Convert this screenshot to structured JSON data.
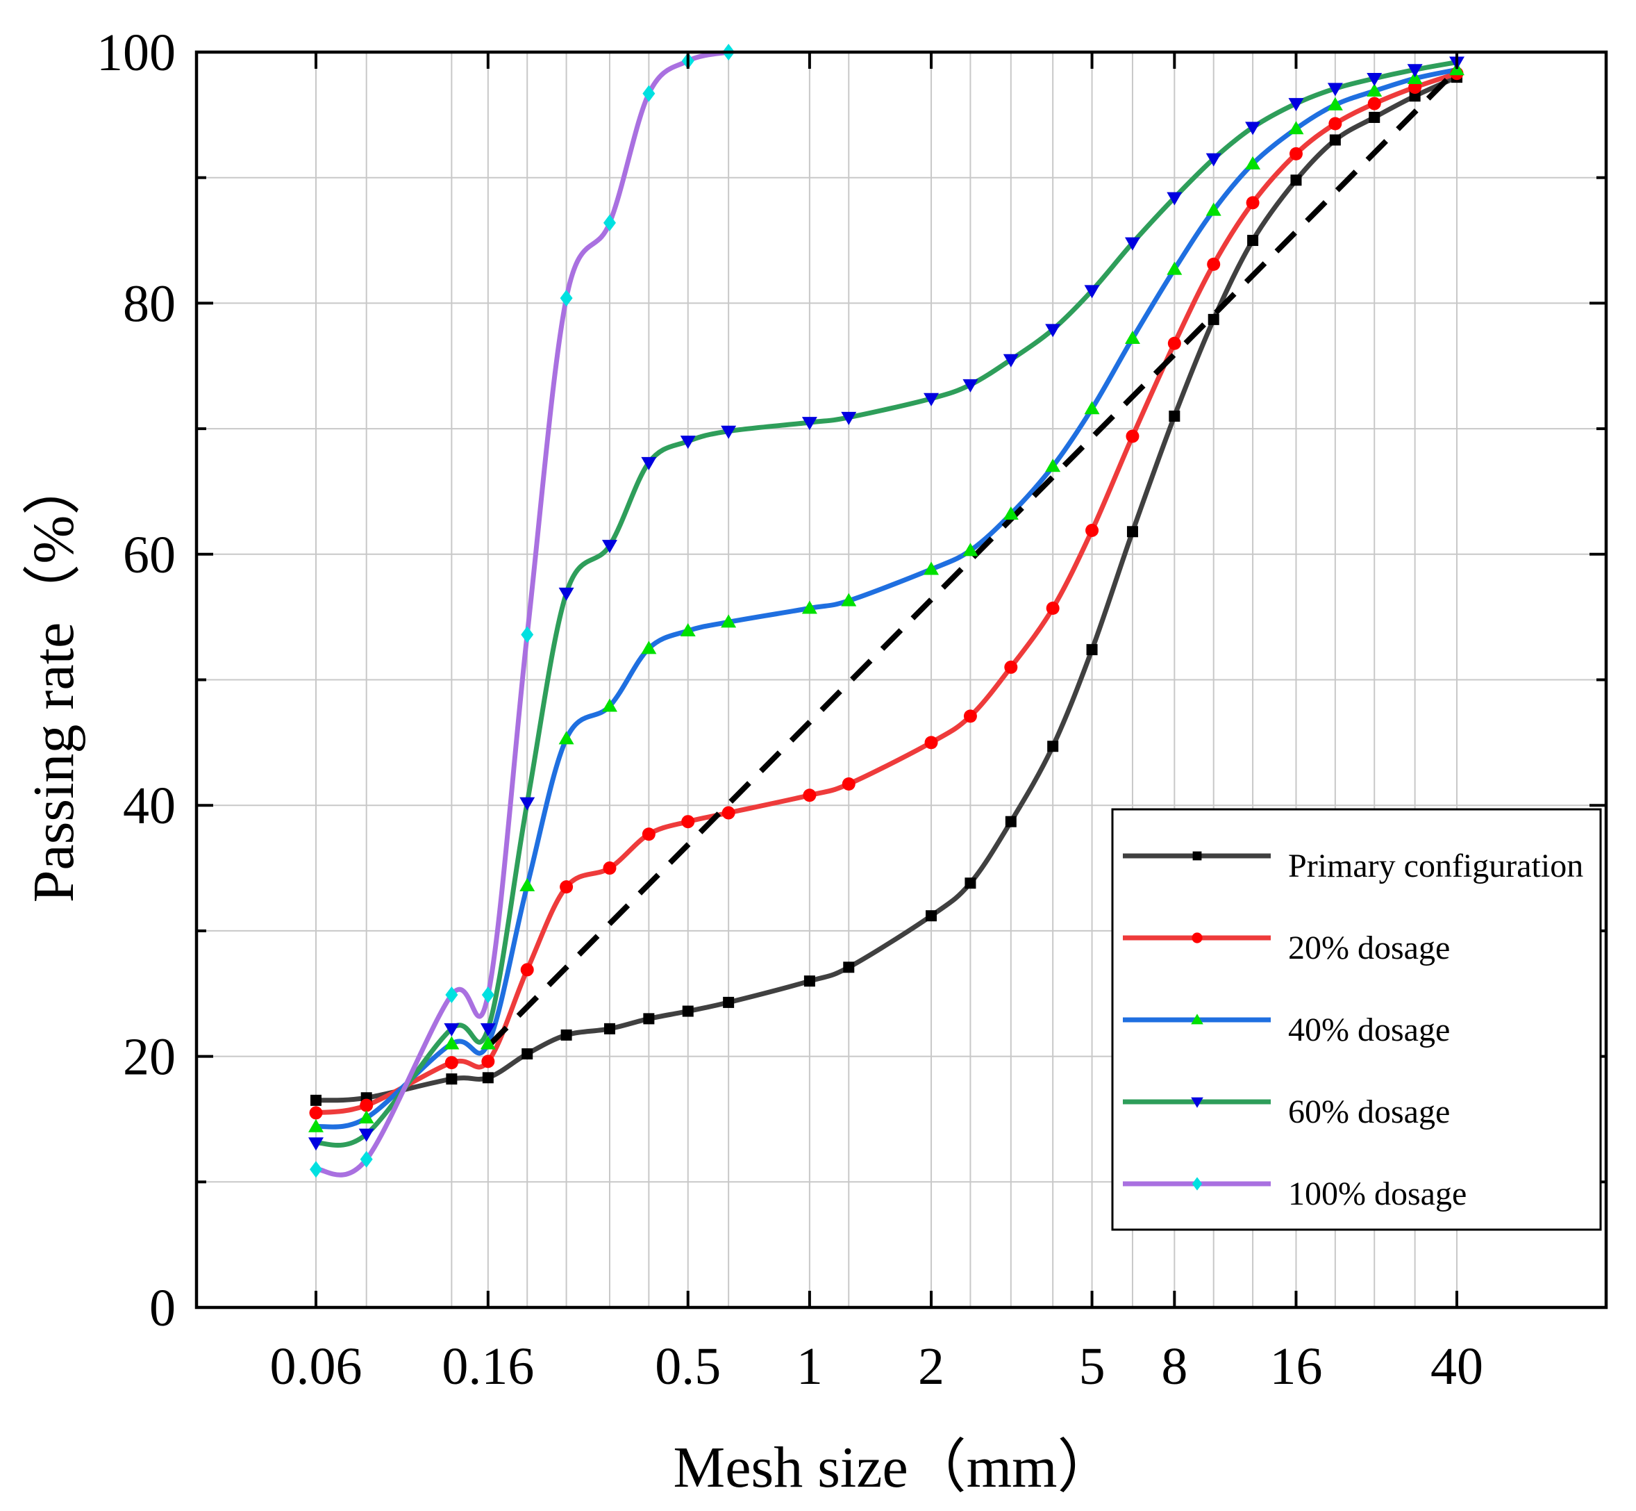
{
  "chart_data": {
    "type": "line",
    "title": "",
    "xlabel": "Mesh size（mm）",
    "ylabel": "Passing rate（%）",
    "xscale": "log",
    "ylim": [
      0,
      100
    ],
    "y_ticks": [
      0,
      20,
      40,
      60,
      80,
      100
    ],
    "x_tick_labels": [
      {
        "value": 0.06,
        "label": "0.06"
      },
      {
        "value": 0.16,
        "label": "0.16"
      },
      {
        "value": 0.5,
        "label": "0.5"
      },
      {
        "value": 1,
        "label": "1"
      },
      {
        "value": 2,
        "label": "2"
      },
      {
        "value": 5,
        "label": "5"
      },
      {
        "value": 8,
        "label": "8"
      },
      {
        "value": 16,
        "label": "16"
      },
      {
        "value": 40,
        "label": "40"
      }
    ],
    "grid": true,
    "legend_position": "bottom-right",
    "sieves": [
      0.06,
      0.08,
      0.13,
      0.16,
      0.2,
      0.25,
      0.32,
      0.4,
      0.5,
      0.63,
      1,
      1.25,
      2,
      2.5,
      3.15,
      4,
      5,
      6.3,
      8,
      10,
      12.5,
      16,
      20,
      25,
      31.5,
      40
    ],
    "series": [
      {
        "name": "Primary configuration",
        "color": "#404040",
        "marker_color": "#000000",
        "marker": "square",
        "values": [
          16.5,
          16.7,
          18.2,
          18.3,
          20.2,
          21.7,
          22.2,
          23.0,
          23.6,
          24.3,
          26.0,
          27.1,
          31.2,
          33.8,
          38.7,
          44.7,
          52.4,
          61.8,
          71.0,
          78.7,
          85.0,
          89.8,
          93.0,
          94.8,
          96.5,
          98.0
        ]
      },
      {
        "name": "20% dosage",
        "color": "#EE3B3B",
        "marker_color": "#FF0000",
        "marker": "circle",
        "values": [
          15.5,
          16.1,
          19.5,
          19.6,
          26.9,
          33.5,
          35.0,
          37.7,
          38.7,
          39.4,
          40.8,
          41.7,
          45.0,
          47.1,
          51.0,
          55.7,
          61.9,
          69.4,
          76.8,
          83.1,
          88.0,
          91.9,
          94.3,
          95.9,
          97.2,
          98.3
        ]
      },
      {
        "name": "40% dosage",
        "color": "#1F6FE0",
        "marker_color": "#00E000",
        "marker": "triangle-up",
        "values": [
          14.4,
          15.1,
          21.0,
          21.0,
          33.6,
          45.3,
          47.9,
          52.5,
          53.9,
          54.6,
          55.7,
          56.3,
          58.8,
          60.3,
          63.2,
          67.0,
          71.6,
          77.2,
          82.7,
          87.4,
          91.1,
          93.9,
          95.8,
          96.9,
          97.9,
          98.6
        ]
      },
      {
        "name": "60% dosage",
        "color": "#2E9E5A",
        "marker_color": "#0000E0",
        "marker": "triangle-down",
        "values": [
          13.1,
          13.8,
          22.2,
          22.2,
          40.2,
          56.9,
          60.7,
          67.3,
          69.0,
          69.8,
          70.5,
          70.9,
          72.4,
          73.5,
          75.5,
          77.9,
          81.0,
          84.8,
          88.4,
          91.5,
          94.0,
          95.9,
          97.1,
          97.9,
          98.6,
          99.2
        ]
      },
      {
        "name": "100% dosage",
        "color": "#A970E0",
        "marker_color": "#00E0E0",
        "marker": "diamond",
        "values": [
          11.0,
          11.8,
          24.9,
          24.9,
          53.6,
          80.4,
          86.4,
          96.7,
          99.3,
          100.0
        ]
      },
      {
        "name": "reference",
        "color": "#000000",
        "style": "dashed",
        "x": [
          0.16,
          40
        ],
        "values": [
          20.8,
          98.6
        ]
      }
    ]
  }
}
